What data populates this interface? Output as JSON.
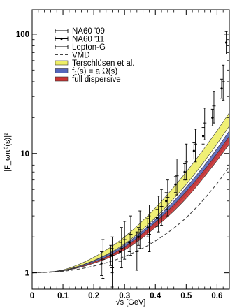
{
  "chart_data": {
    "type": "line",
    "xlabel": "√s [GeV]",
    "ylabel": "|F_ωπ⁰(s)|²",
    "xlim": [
      0,
      0.64
    ],
    "ylim": [
      0.73,
      160
    ],
    "yscale": "log",
    "grid": false,
    "legend_position": "top-left",
    "x_ticks": [
      {
        "value": 0,
        "label": "0"
      },
      {
        "value": 0.1,
        "label": "0.1"
      },
      {
        "value": 0.2,
        "label": "0.2"
      },
      {
        "value": 0.3,
        "label": "0.3"
      },
      {
        "value": 0.4,
        "label": "0.4"
      },
      {
        "value": 0.5,
        "label": "0.5"
      },
      {
        "value": 0.6,
        "label": "0.6"
      }
    ],
    "y_ticks": [
      {
        "value": 1,
        "label": "1"
      },
      {
        "value": 10,
        "label": "10"
      },
      {
        "value": 100,
        "label": "100"
      }
    ],
    "legend": [
      {
        "label": "NA60 '09",
        "style": "errorbar"
      },
      {
        "label": "NA60 '11",
        "style": "errorbar-dot"
      },
      {
        "label": "Lepton-G",
        "style": "errorbar"
      },
      {
        "label": "VMD",
        "style": "dashed"
      },
      {
        "label": "Terschlüsen et al.",
        "style": "band",
        "color": "#eeee66"
      },
      {
        "label": "f₁(s) = a Ω(s)",
        "style": "band",
        "color": "#5566bb"
      },
      {
        "label": "full dispersive",
        "style": "band",
        "color": "#cc3333"
      }
    ],
    "series": [
      {
        "style": "dashed",
        "x": [
          0,
          0.1,
          0.2,
          0.3,
          0.4,
          0.5,
          0.6,
          0.64
        ],
        "y": [
          1,
          1.03,
          1.14,
          1.37,
          1.85,
          2.9,
          5.6,
          7.8
        ]
      },
      {
        "style": "band",
        "color": "#eeee66",
        "x": [
          0,
          0.1,
          0.2,
          0.3,
          0.4,
          0.5,
          0.6,
          0.64
        ],
        "upper": [
          1,
          1.06,
          1.35,
          2.0,
          3.5,
          7.0,
          15.5,
          22
        ],
        "lower": [
          1,
          1.05,
          1.27,
          1.75,
          2.9,
          5.5,
          12.0,
          17
        ]
      },
      {
        "style": "band",
        "color": "#5566bb",
        "x": [
          0,
          0.1,
          0.2,
          0.3,
          0.4,
          0.5,
          0.6,
          0.64
        ],
        "upper": [
          1,
          1.05,
          1.26,
          1.72,
          2.8,
          5.2,
          11.0,
          15.5
        ],
        "lower": [
          1,
          1.04,
          1.22,
          1.6,
          2.5,
          4.5,
          9.3,
          13
        ]
      },
      {
        "style": "band",
        "color": "#cc3333",
        "x": [
          0,
          0.1,
          0.2,
          0.3,
          0.4,
          0.5,
          0.6,
          0.64
        ],
        "upper": [
          1,
          1.045,
          1.23,
          1.65,
          2.65,
          4.8,
          10.0,
          14
        ],
        "lower": [
          1,
          1.04,
          1.2,
          1.55,
          2.4,
          4.2,
          8.7,
          12
        ]
      },
      {
        "name": "NA60 '09",
        "style": "errorbar",
        "points": [
          {
            "x": 0.23,
            "y": 1.3,
            "lo": 0.9,
            "hi": 1.9
          },
          {
            "x": 0.26,
            "y": 1.4,
            "lo": 1.0,
            "hi": 2.0
          },
          {
            "x": 0.29,
            "y": 1.6,
            "lo": 1.1,
            "hi": 2.4
          },
          {
            "x": 0.32,
            "y": 2.1,
            "lo": 1.4,
            "hi": 3.0
          },
          {
            "x": 0.35,
            "y": 2.3,
            "lo": 1.6,
            "hi": 3.3
          },
          {
            "x": 0.38,
            "y": 2.6,
            "lo": 1.8,
            "hi": 3.7
          },
          {
            "x": 0.41,
            "y": 3.1,
            "lo": 2.2,
            "hi": 4.4
          },
          {
            "x": 0.44,
            "y": 4.3,
            "lo": 3.0,
            "hi": 6.0
          },
          {
            "x": 0.47,
            "y": 6.5,
            "lo": 4.5,
            "hi": 9.0
          },
          {
            "x": 0.5,
            "y": 8.5,
            "lo": 6.0,
            "hi": 12.0
          },
          {
            "x": 0.53,
            "y": 12.0,
            "lo": 8.5,
            "hi": 16.0
          },
          {
            "x": 0.56,
            "y": 18.0,
            "lo": 13.0,
            "hi": 24.0
          },
          {
            "x": 0.59,
            "y": 25.0,
            "lo": 18.0,
            "hi": 33.0
          },
          {
            "x": 0.62,
            "y": 40.0,
            "lo": 28.0,
            "hi": 55.0
          }
        ]
      },
      {
        "name": "NA60 '11",
        "style": "errorbar-dot",
        "points": [
          {
            "x": 0.225,
            "y": 1.2,
            "lo": 0.95,
            "hi": 1.5
          },
          {
            "x": 0.255,
            "y": 1.4,
            "lo": 1.15,
            "hi": 1.7
          },
          {
            "x": 0.285,
            "y": 1.5,
            "lo": 1.25,
            "hi": 1.8
          },
          {
            "x": 0.315,
            "y": 1.8,
            "lo": 1.5,
            "hi": 2.15
          },
          {
            "x": 0.345,
            "y": 2.0,
            "lo": 1.7,
            "hi": 2.4
          },
          {
            "x": 0.375,
            "y": 2.4,
            "lo": 2.0,
            "hi": 2.85
          },
          {
            "x": 0.405,
            "y": 2.9,
            "lo": 2.45,
            "hi": 3.4
          },
          {
            "x": 0.435,
            "y": 4.0,
            "lo": 3.4,
            "hi": 4.7
          },
          {
            "x": 0.465,
            "y": 5.5,
            "lo": 4.7,
            "hi": 6.4
          },
          {
            "x": 0.495,
            "y": 7.0,
            "lo": 6.0,
            "hi": 8.2
          },
          {
            "x": 0.525,
            "y": 10.5,
            "lo": 9.0,
            "hi": 12.3
          },
          {
            "x": 0.555,
            "y": 14.0,
            "lo": 12.0,
            "hi": 16.5
          },
          {
            "x": 0.585,
            "y": 20.0,
            "lo": 17.0,
            "hi": 23.5
          },
          {
            "x": 0.615,
            "y": 35.0,
            "lo": 29.0,
            "hi": 42.0
          },
          {
            "x": 0.63,
            "y": 85.0,
            "lo": 68.0,
            "hi": 105.0
          }
        ]
      },
      {
        "name": "Lepton-G",
        "style": "errorbar",
        "points": [
          {
            "x": 0.26,
            "y": 1.1,
            "lo": 0.76,
            "hi": 1.6
          },
          {
            "x": 0.3,
            "y": 1.9,
            "lo": 1.3,
            "hi": 2.7
          },
          {
            "x": 0.34,
            "y": 1.5,
            "lo": 1.05,
            "hi": 2.2
          },
          {
            "x": 0.38,
            "y": 2.1,
            "lo": 1.5,
            "hi": 3.0
          },
          {
            "x": 0.42,
            "y": 3.6,
            "lo": 2.5,
            "hi": 5.0
          }
        ]
      }
    ]
  }
}
